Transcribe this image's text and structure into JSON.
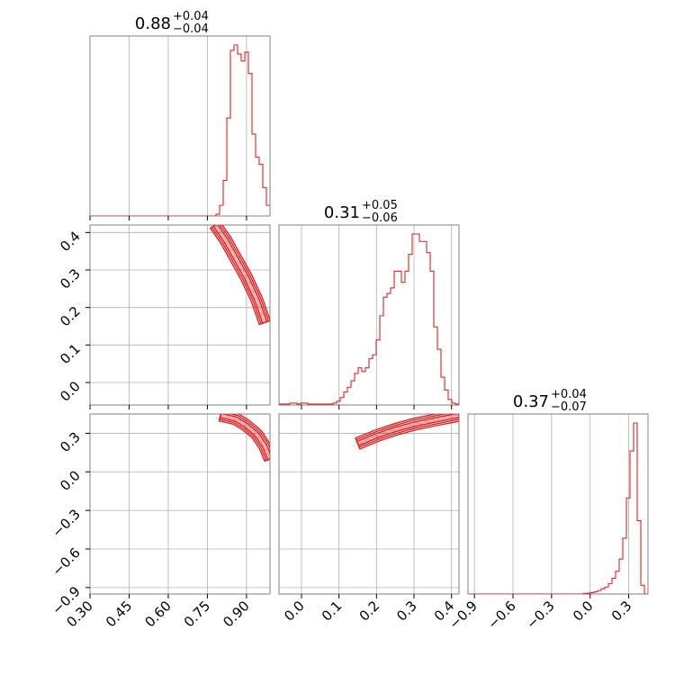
{
  "chart_data": {
    "type": "corner",
    "parameters": [
      {
        "range": [
          0.3,
          0.99
        ],
        "ticks": [
          "0.30",
          "0.45",
          "0.60",
          "0.75",
          "0.90"
        ],
        "tick_values": [
          0.3,
          0.45,
          0.6,
          0.75,
          0.9
        ],
        "title": {
          "median": "0.88",
          "plus": "+0.04",
          "minus": "−0.04"
        }
      },
      {
        "range": [
          -0.06,
          0.42
        ],
        "ticks": [
          "0.0",
          "0.1",
          "0.2",
          "0.3",
          "0.4"
        ],
        "tick_values": [
          0.0,
          0.1,
          0.2,
          0.3,
          0.4
        ],
        "title": {
          "median": "0.31",
          "plus": "+0.05",
          "minus": "−0.06"
        }
      },
      {
        "range": [
          -0.95,
          0.45
        ],
        "ticks": [
          "−0.9",
          "−0.6",
          "−0.3",
          "0.0",
          "0.3"
        ],
        "tick_values": [
          -0.9,
          -0.6,
          -0.3,
          0.0,
          0.3
        ],
        "title": {
          "median": "0.37",
          "plus": "+0.04",
          "minus": "−0.07"
        }
      }
    ],
    "histograms": [
      {
        "param": 0,
        "bin_start": 0.3,
        "bin_width": 0.0138,
        "counts": [
          0,
          0,
          0,
          0,
          0,
          0,
          0,
          0,
          0,
          0,
          0,
          0,
          0,
          0,
          0,
          0,
          0,
          0,
          0,
          0,
          0,
          0,
          0,
          0,
          0,
          0,
          0,
          0,
          0,
          0,
          0,
          0,
          0,
          0,
          0,
          0.01,
          0.06,
          0.2,
          0.55,
          0.93,
          0.96,
          0.91,
          0.87,
          0.92,
          0.8,
          0.46,
          0.33,
          0.29,
          0.16,
          0.06
        ]
      },
      {
        "param": 1,
        "bin_start": -0.06,
        "bin_width": 0.0096,
        "counts": [
          0.005,
          0.005,
          0.005,
          0.01,
          0.01,
          0.005,
          0.01,
          0.01,
          0.005,
          0.005,
          0.005,
          0.005,
          0.005,
          0.005,
          0.005,
          0.01,
          0.02,
          0.04,
          0.07,
          0.095,
          0.13,
          0.17,
          0.2,
          0.18,
          0.2,
          0.25,
          0.27,
          0.35,
          0.48,
          0.58,
          0.6,
          0.63,
          0.72,
          0.72,
          0.66,
          0.72,
          0.81,
          0.92,
          0.92,
          0.88,
          0.88,
          0.82,
          0.72,
          0.42,
          0.3,
          0.15,
          0.08,
          0.03,
          0.01,
          0.005
        ]
      },
      {
        "param": 2,
        "bin_start": -0.95,
        "bin_width": 0.028,
        "counts": [
          0,
          0,
          0,
          0,
          0,
          0,
          0,
          0,
          0,
          0,
          0,
          0,
          0,
          0,
          0,
          0,
          0,
          0,
          0,
          0,
          0,
          0,
          0,
          0,
          0,
          0,
          0,
          0,
          0,
          0,
          0,
          0,
          0.003,
          0.005,
          0.008,
          0.012,
          0.02,
          0.03,
          0.04,
          0.06,
          0.09,
          0.13,
          0.2,
          0.32,
          0.55,
          0.82,
          0.98,
          0.42,
          0.05,
          0.0
        ]
      }
    ],
    "pairs": [
      {
        "x_param": 0,
        "y_param": 1,
        "ridge": [
          [
            0.78,
            0.42
          ],
          [
            0.82,
            0.38
          ],
          [
            0.86,
            0.33
          ],
          [
            0.9,
            0.28
          ],
          [
            0.94,
            0.22
          ],
          [
            0.97,
            0.16
          ]
        ]
      },
      {
        "x_param": 0,
        "y_param": 2,
        "ridge": [
          [
            0.8,
            0.44
          ],
          [
            0.86,
            0.41
          ],
          [
            0.9,
            0.36
          ],
          [
            0.94,
            0.29
          ],
          [
            0.97,
            0.2
          ],
          [
            0.99,
            0.1
          ]
        ]
      },
      {
        "x_param": 1,
        "y_param": 2,
        "ridge": [
          [
            0.15,
            0.22
          ],
          [
            0.2,
            0.28
          ],
          [
            0.25,
            0.33
          ],
          [
            0.3,
            0.37
          ],
          [
            0.35,
            0.4
          ],
          [
            0.42,
            0.44
          ]
        ]
      }
    ],
    "color": "#d62728",
    "grid": true
  }
}
